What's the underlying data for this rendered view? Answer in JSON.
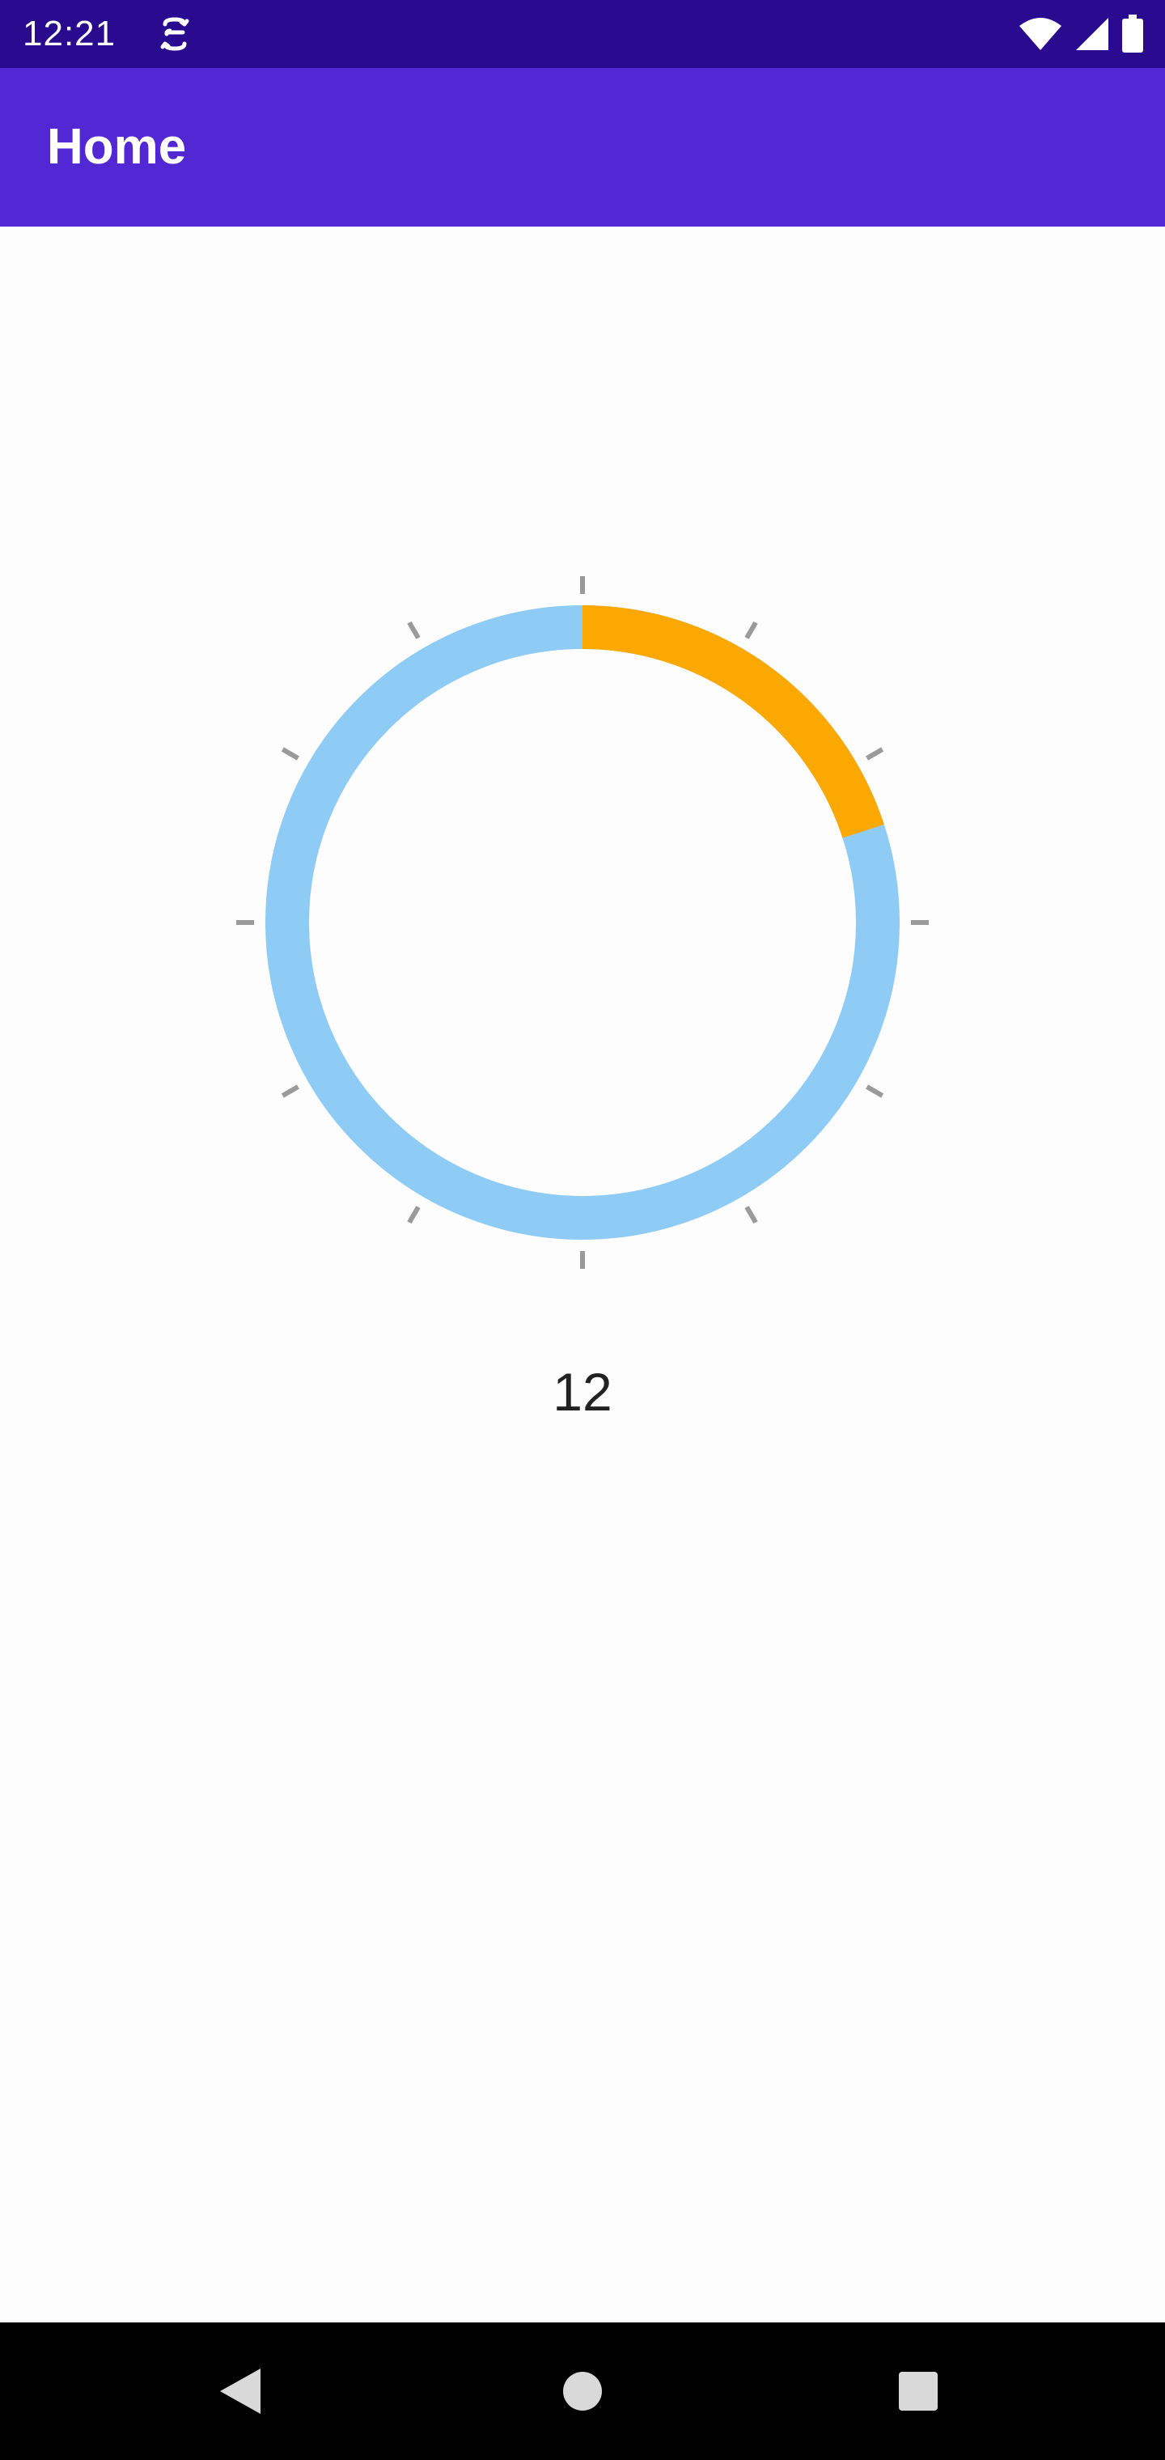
{
  "status_bar": {
    "time": "12:21",
    "app_icon": "sync-icon",
    "icons": [
      "wifi-icon",
      "cell-signal-icon",
      "battery-icon"
    ]
  },
  "app_bar": {
    "title": "Home"
  },
  "gauge": {
    "min": 0,
    "max": 60,
    "value": 12,
    "value_label": "12",
    "tick_count": 12,
    "colors": {
      "track": "#8ecbf5",
      "progress": "#fba800",
      "ticks": "#9a9a9a"
    }
  },
  "nav_bar": {
    "buttons": [
      "back-icon",
      "home-icon",
      "recents-icon"
    ]
  }
}
